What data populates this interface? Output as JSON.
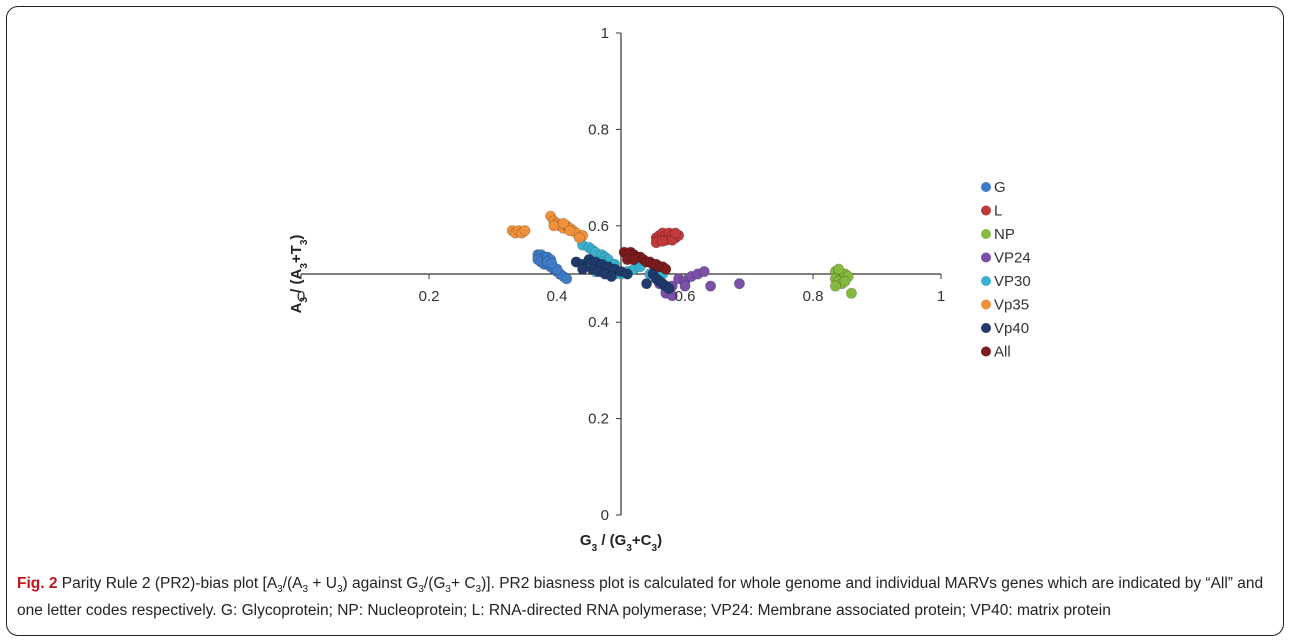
{
  "chart_data": {
    "type": "scatter",
    "xlabel": "G3 / (G3+C3)",
    "ylabel": "A3 / (A3+T3)",
    "xlim": [
      0,
      1
    ],
    "ylim": [
      0,
      1
    ],
    "x_ticks": [
      "0",
      "0.2",
      "0.4",
      "0.6",
      "0.8",
      "1"
    ],
    "y_ticks": [
      "0",
      "0.2",
      "0.4",
      "0.6",
      "0.8",
      "1"
    ],
    "axes_cross_at": {
      "x": 0.5,
      "y": 0.5
    },
    "grid": false,
    "legend": "right",
    "series": [
      {
        "name": "G",
        "color": "#3f7cc7",
        "points": [
          [
            0.37,
            0.54
          ],
          [
            0.375,
            0.54
          ],
          [
            0.38,
            0.535
          ],
          [
            0.37,
            0.53
          ],
          [
            0.375,
            0.525
          ],
          [
            0.38,
            0.52
          ],
          [
            0.385,
            0.535
          ],
          [
            0.39,
            0.53
          ],
          [
            0.385,
            0.52
          ],
          [
            0.39,
            0.515
          ],
          [
            0.395,
            0.51
          ],
          [
            0.4,
            0.505
          ],
          [
            0.405,
            0.5
          ],
          [
            0.41,
            0.495
          ],
          [
            0.415,
            0.49
          ],
          [
            0.4,
            0.51
          ],
          [
            0.385,
            0.525
          ],
          [
            0.392,
            0.522
          ]
        ]
      },
      {
        "name": "L",
        "color": "#c0393b",
        "points": [
          [
            0.555,
            0.575
          ],
          [
            0.56,
            0.58
          ],
          [
            0.565,
            0.585
          ],
          [
            0.57,
            0.58
          ],
          [
            0.575,
            0.585
          ],
          [
            0.58,
            0.58
          ],
          [
            0.585,
            0.575
          ],
          [
            0.59,
            0.58
          ],
          [
            0.56,
            0.57
          ],
          [
            0.57,
            0.57
          ],
          [
            0.58,
            0.57
          ],
          [
            0.555,
            0.565
          ],
          [
            0.565,
            0.568
          ],
          [
            0.585,
            0.585
          ]
        ]
      },
      {
        "name": "NP",
        "color": "#86b93f",
        "points": [
          [
            0.835,
            0.505
          ],
          [
            0.84,
            0.5
          ],
          [
            0.845,
            0.495
          ],
          [
            0.85,
            0.5
          ],
          [
            0.835,
            0.49
          ],
          [
            0.84,
            0.485
          ],
          [
            0.845,
            0.48
          ],
          [
            0.855,
            0.495
          ],
          [
            0.86,
            0.46
          ],
          [
            0.835,
            0.475
          ],
          [
            0.84,
            0.51
          ],
          [
            0.85,
            0.485
          ]
        ]
      },
      {
        "name": "VP24",
        "color": "#7b50a8",
        "points": [
          [
            0.56,
            0.48
          ],
          [
            0.57,
            0.47
          ],
          [
            0.58,
            0.475
          ],
          [
            0.59,
            0.49
          ],
          [
            0.6,
            0.485
          ],
          [
            0.61,
            0.495
          ],
          [
            0.62,
            0.5
          ],
          [
            0.63,
            0.505
          ],
          [
            0.64,
            0.475
          ],
          [
            0.685,
            0.48
          ],
          [
            0.57,
            0.46
          ],
          [
            0.58,
            0.455
          ],
          [
            0.6,
            0.475
          ]
        ]
      },
      {
        "name": "VP30",
        "color": "#3ab1cc",
        "points": [
          [
            0.44,
            0.56
          ],
          [
            0.45,
            0.555
          ],
          [
            0.455,
            0.55
          ],
          [
            0.46,
            0.545
          ],
          [
            0.47,
            0.54
          ],
          [
            0.475,
            0.535
          ],
          [
            0.48,
            0.53
          ],
          [
            0.47,
            0.525
          ],
          [
            0.465,
            0.52
          ],
          [
            0.46,
            0.515
          ],
          [
            0.475,
            0.51
          ],
          [
            0.48,
            0.505
          ],
          [
            0.49,
            0.5
          ],
          [
            0.5,
            0.5
          ],
          [
            0.51,
            0.505
          ],
          [
            0.52,
            0.51
          ],
          [
            0.53,
            0.515
          ],
          [
            0.545,
            0.5
          ],
          [
            0.555,
            0.505
          ],
          [
            0.565,
            0.5
          ],
          [
            0.45,
            0.525
          ],
          [
            0.46,
            0.505
          ],
          [
            0.49,
            0.52
          ]
        ]
      },
      {
        "name": "Vp35",
        "color": "#f0903a",
        "points": [
          [
            0.33,
            0.59
          ],
          [
            0.335,
            0.585
          ],
          [
            0.34,
            0.59
          ],
          [
            0.345,
            0.585
          ],
          [
            0.35,
            0.59
          ],
          [
            0.39,
            0.62
          ],
          [
            0.395,
            0.61
          ],
          [
            0.4,
            0.605
          ],
          [
            0.405,
            0.6
          ],
          [
            0.41,
            0.595
          ],
          [
            0.415,
            0.6
          ],
          [
            0.42,
            0.595
          ],
          [
            0.425,
            0.59
          ],
          [
            0.43,
            0.585
          ],
          [
            0.44,
            0.58
          ],
          [
            0.395,
            0.6
          ],
          [
            0.41,
            0.605
          ],
          [
            0.42,
            0.59
          ],
          [
            0.435,
            0.575
          ]
        ]
      },
      {
        "name": "Vp40",
        "color": "#1f3a6b",
        "points": [
          [
            0.43,
            0.525
          ],
          [
            0.44,
            0.52
          ],
          [
            0.45,
            0.53
          ],
          [
            0.46,
            0.525
          ],
          [
            0.47,
            0.52
          ],
          [
            0.48,
            0.515
          ],
          [
            0.49,
            0.51
          ],
          [
            0.5,
            0.505
          ],
          [
            0.51,
            0.5
          ],
          [
            0.44,
            0.51
          ],
          [
            0.455,
            0.51
          ],
          [
            0.465,
            0.505
          ],
          [
            0.475,
            0.5
          ],
          [
            0.485,
            0.495
          ],
          [
            0.55,
            0.5
          ],
          [
            0.555,
            0.49
          ],
          [
            0.56,
            0.485
          ],
          [
            0.565,
            0.48
          ],
          [
            0.57,
            0.475
          ],
          [
            0.575,
            0.47
          ],
          [
            0.54,
            0.48
          ]
        ]
      },
      {
        "name": "All",
        "color": "#7c1c1e",
        "points": [
          [
            0.505,
            0.545
          ],
          [
            0.51,
            0.54
          ],
          [
            0.515,
            0.545
          ],
          [
            0.52,
            0.54
          ],
          [
            0.525,
            0.535
          ],
          [
            0.53,
            0.535
          ],
          [
            0.535,
            0.53
          ],
          [
            0.54,
            0.525
          ],
          [
            0.545,
            0.525
          ],
          [
            0.55,
            0.52
          ],
          [
            0.555,
            0.52
          ],
          [
            0.56,
            0.515
          ],
          [
            0.565,
            0.515
          ],
          [
            0.57,
            0.51
          ],
          [
            0.51,
            0.53
          ],
          [
            0.52,
            0.53
          ]
        ]
      }
    ]
  },
  "caption": {
    "label": "Fig. 2",
    "text": "Parity Rule 2 (PR2)-bias plot [A3/(A3 + U3) against G3/(G3+ C3)]. PR2 biasness plot is calculated for whole genome and individual MARVs genes which are indicated by “All” and one letter codes respectively. G: Glycoprotein; NP: Nucleoprotein; L: RNA-directed RNA polymerase; VP24: Membrane associated protein; VP40: matrix protein"
  }
}
